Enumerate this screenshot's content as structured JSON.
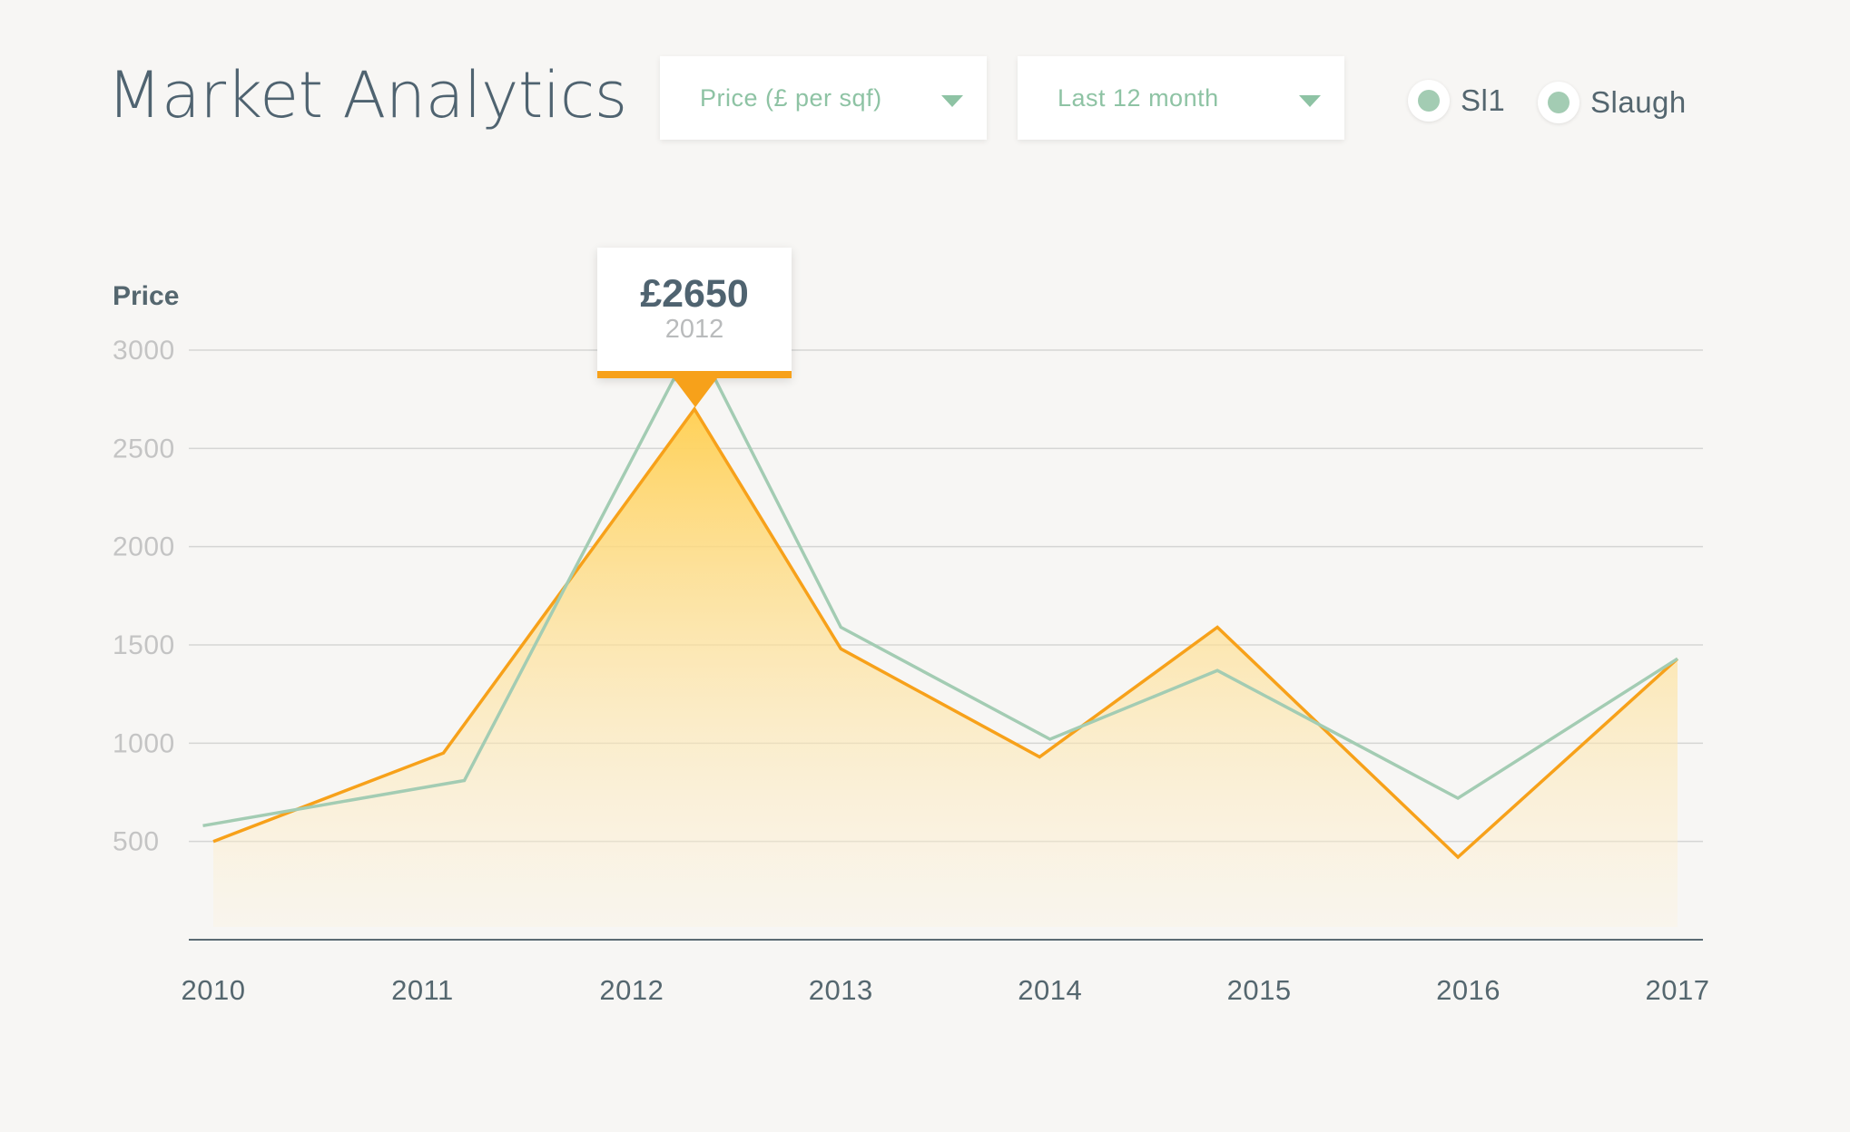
{
  "header": {
    "title": "Market Analytics"
  },
  "filters": {
    "metric": {
      "label": "Price (£ per sqf)"
    },
    "period": {
      "label": "Last 12 month"
    }
  },
  "legend": [
    {
      "label": "Sl1",
      "color": "#a3ccb3"
    },
    {
      "label": "Slaugh",
      "color": "#a3ccb3"
    }
  ],
  "tooltip": {
    "value": "£2650",
    "year": "2012"
  },
  "colors": {
    "orange": "#f7a11a",
    "green": "#a3ccb3",
    "fill_top": "#ffd158"
  },
  "chart_data": {
    "type": "area",
    "ylabel": "Price",
    "xlabel": "",
    "ylim": [
      0,
      3000
    ],
    "yticks": [
      500,
      1000,
      1500,
      2000,
      2500,
      3000
    ],
    "categories": [
      "2010",
      "2011",
      "2012",
      "2013",
      "2014",
      "2015",
      "2016",
      "2017"
    ],
    "series": [
      {
        "color": "#f7a11a",
        "filled": true,
        "points": [
          [
            2010.0,
            500
          ],
          [
            2011.1,
            950
          ],
          [
            2012.3,
            2700
          ],
          [
            2013.0,
            1480
          ],
          [
            2013.95,
            930
          ],
          [
            2014.8,
            1590
          ],
          [
            2015.95,
            420
          ],
          [
            2017.0,
            1430
          ]
        ]
      },
      {
        "color": "#a3ccb3",
        "filled": false,
        "points": [
          [
            2009.95,
            580
          ],
          [
            2011.2,
            810
          ],
          [
            2012.2,
            2850
          ],
          [
            2012.4,
            2850
          ],
          [
            2013.0,
            1590
          ],
          [
            2014.0,
            1020
          ],
          [
            2014.8,
            1370
          ],
          [
            2015.95,
            720
          ],
          [
            2017.0,
            1430
          ]
        ]
      }
    ],
    "grid": true,
    "legend_position": "top-right"
  }
}
